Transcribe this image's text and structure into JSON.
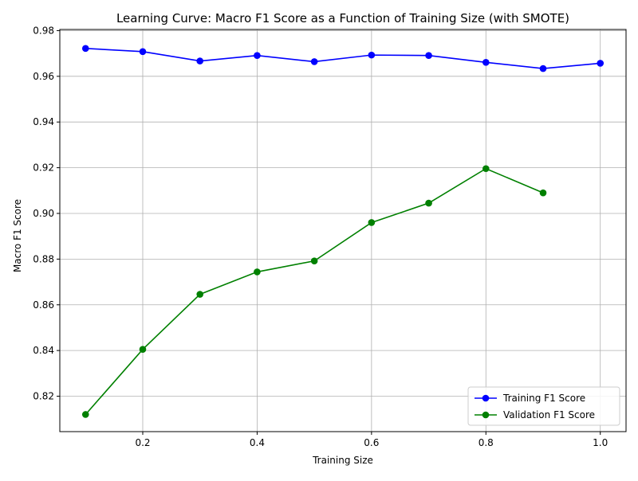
{
  "chart_data": {
    "type": "line",
    "title": "Learning Curve: Macro F1 Score as a Function of Training Size (with SMOTE)",
    "xlabel": "Training Size",
    "ylabel": "Macro F1 Score",
    "xlim": [
      0.055,
      1.045
    ],
    "ylim": [
      0.8045,
      0.9805
    ],
    "xticks": [
      0.2,
      0.4,
      0.6,
      0.8,
      1.0
    ],
    "xtick_labels": [
      "0.2",
      "0.4",
      "0.6",
      "0.8",
      "1.0"
    ],
    "yticks": [
      0.82,
      0.84,
      0.86,
      0.88,
      0.9,
      0.92,
      0.94,
      0.96,
      0.98
    ],
    "ytick_labels": [
      "0.82",
      "0.84",
      "0.86",
      "0.88",
      "0.90",
      "0.92",
      "0.94",
      "0.96",
      "0.98"
    ],
    "grid": true,
    "legend_position": "lower-right",
    "series": [
      {
        "name": "Training F1 Score",
        "color": "#0000ff",
        "x": [
          0.1,
          0.2,
          0.3,
          0.4,
          0.5,
          0.6,
          0.7,
          0.8,
          0.9,
          1.0
        ],
        "y": [
          0.9722,
          0.9708,
          0.9667,
          0.9691,
          0.9664,
          0.9693,
          0.9691,
          0.9661,
          0.9634,
          0.9657
        ]
      },
      {
        "name": "Validation F1 Score",
        "color": "#008000",
        "x": [
          0.1,
          0.2,
          0.3,
          0.4,
          0.5,
          0.6,
          0.7,
          0.8,
          0.9
        ],
        "y": [
          0.812,
          0.8405,
          0.8646,
          0.8744,
          0.8792,
          0.896,
          0.9045,
          0.9196,
          0.909
        ]
      }
    ]
  }
}
